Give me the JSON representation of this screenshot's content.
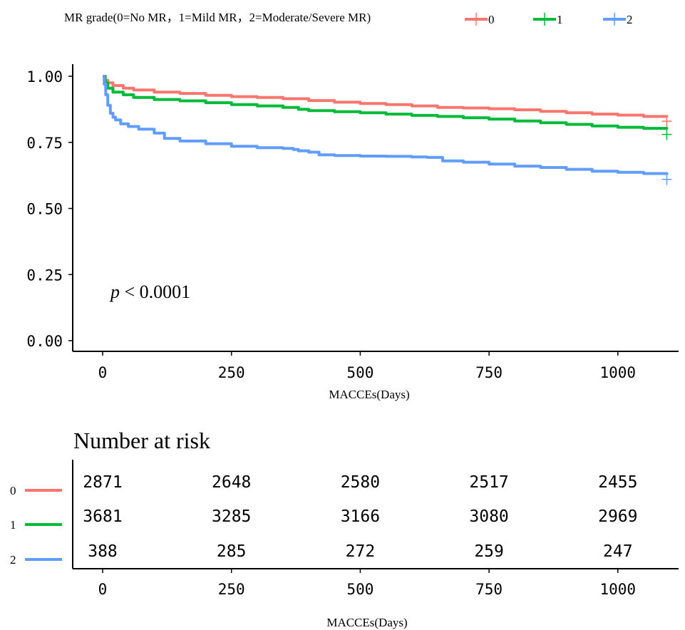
{
  "legend": {
    "title": "MR grade(0=No MR，1=Mild MR，2=Moderate/Severe MR)",
    "items": [
      {
        "label": "0",
        "color": "#F8766D"
      },
      {
        "label": "1",
        "color": "#00BA38"
      },
      {
        "label": "2",
        "color": "#619CFF"
      }
    ]
  },
  "chart_data": [
    {
      "type": "line",
      "title": "",
      "xlabel": "MACCEs(Days)",
      "ylabel": "",
      "xlim": [
        -50,
        1100
      ],
      "ylim": [
        -0.05,
        1.05
      ],
      "x_ticks": [
        "0",
        "250",
        "500",
        "750",
        "1000"
      ],
      "y_ticks": [
        "0.00",
        "0.25",
        "0.50",
        "0.75",
        "1.00"
      ],
      "x_tick_values": [
        0,
        250,
        500,
        750,
        1000
      ],
      "y_tick_values": [
        0,
        0.25,
        0.5,
        0.75,
        1.0
      ],
      "annotation": {
        "p_italic": "p",
        "p_rest": " < 0.0001"
      },
      "series": [
        {
          "name": "0",
          "color": "#F8766D",
          "censor": [
            1095,
            0.83
          ],
          "points": [
            [
              0,
              1.0
            ],
            [
              5,
              0.985
            ],
            [
              10,
              0.975
            ],
            [
              20,
              0.965
            ],
            [
              40,
              0.955
            ],
            [
              60,
              0.948
            ],
            [
              100,
              0.94
            ],
            [
              150,
              0.935
            ],
            [
              200,
              0.928
            ],
            [
              250,
              0.923
            ],
            [
              300,
              0.92
            ],
            [
              350,
              0.915
            ],
            [
              400,
              0.908
            ],
            [
              450,
              0.902
            ],
            [
              500,
              0.897
            ],
            [
              550,
              0.893
            ],
            [
              600,
              0.888
            ],
            [
              650,
              0.882
            ],
            [
              700,
              0.88
            ],
            [
              750,
              0.877
            ],
            [
              800,
              0.873
            ],
            [
              850,
              0.867
            ],
            [
              900,
              0.862
            ],
            [
              950,
              0.857
            ],
            [
              1000,
              0.853
            ],
            [
              1050,
              0.848
            ],
            [
              1095,
              0.845
            ]
          ]
        },
        {
          "name": "1",
          "color": "#00BA38",
          "censor": [
            1095,
            0.78
          ],
          "points": [
            [
              0,
              1.0
            ],
            [
              5,
              0.975
            ],
            [
              10,
              0.955
            ],
            [
              20,
              0.94
            ],
            [
              40,
              0.93
            ],
            [
              60,
              0.92
            ],
            [
              100,
              0.912
            ],
            [
              150,
              0.907
            ],
            [
              200,
              0.9
            ],
            [
              250,
              0.893
            ],
            [
              300,
              0.888
            ],
            [
              350,
              0.882
            ],
            [
              380,
              0.875
            ],
            [
              400,
              0.87
            ],
            [
              450,
              0.866
            ],
            [
              500,
              0.862
            ],
            [
              550,
              0.857
            ],
            [
              600,
              0.852
            ],
            [
              650,
              0.848
            ],
            [
              700,
              0.843
            ],
            [
              750,
              0.838
            ],
            [
              800,
              0.831
            ],
            [
              850,
              0.824
            ],
            [
              900,
              0.818
            ],
            [
              950,
              0.812
            ],
            [
              1000,
              0.807
            ],
            [
              1050,
              0.803
            ],
            [
              1095,
              0.8
            ]
          ]
        },
        {
          "name": "2",
          "color": "#619CFF",
          "censor": [
            1095,
            0.61
          ],
          "points": [
            [
              0,
              1.0
            ],
            [
              3,
              0.97
            ],
            [
              6,
              0.93
            ],
            [
              10,
              0.89
            ],
            [
              15,
              0.86
            ],
            [
              20,
              0.845
            ],
            [
              25,
              0.835
            ],
            [
              35,
              0.82
            ],
            [
              50,
              0.81
            ],
            [
              70,
              0.8
            ],
            [
              100,
              0.785
            ],
            [
              120,
              0.765
            ],
            [
              150,
              0.755
            ],
            [
              200,
              0.745
            ],
            [
              250,
              0.735
            ],
            [
              300,
              0.73
            ],
            [
              350,
              0.727
            ],
            [
              370,
              0.723
            ],
            [
              380,
              0.718
            ],
            [
              400,
              0.713
            ],
            [
              420,
              0.703
            ],
            [
              450,
              0.7
            ],
            [
              500,
              0.698
            ],
            [
              550,
              0.697
            ],
            [
              600,
              0.695
            ],
            [
              630,
              0.693
            ],
            [
              660,
              0.68
            ],
            [
              700,
              0.675
            ],
            [
              750,
              0.668
            ],
            [
              800,
              0.66
            ],
            [
              850,
              0.655
            ],
            [
              900,
              0.648
            ],
            [
              950,
              0.641
            ],
            [
              1000,
              0.637
            ],
            [
              1050,
              0.632
            ],
            [
              1095,
              0.627
            ]
          ]
        }
      ]
    },
    {
      "type": "table",
      "title": "Number at risk",
      "xlabel": "MACCEs(Days)",
      "x_ticks": [
        "0",
        "250",
        "500",
        "750",
        "1000"
      ],
      "x_tick_values": [
        0,
        250,
        500,
        750,
        1000
      ],
      "rows": [
        {
          "label": "0",
          "color": "#F8766D",
          "values": [
            "2871",
            "2648",
            "2580",
            "2517",
            "2455"
          ]
        },
        {
          "label": "1",
          "color": "#00BA38",
          "values": [
            "3681",
            "3285",
            "3166",
            "3080",
            "2969"
          ]
        },
        {
          "label": "2",
          "color": "#619CFF",
          "values": [
            "388",
            "285",
            "272",
            "259",
            "247"
          ]
        }
      ]
    }
  ]
}
